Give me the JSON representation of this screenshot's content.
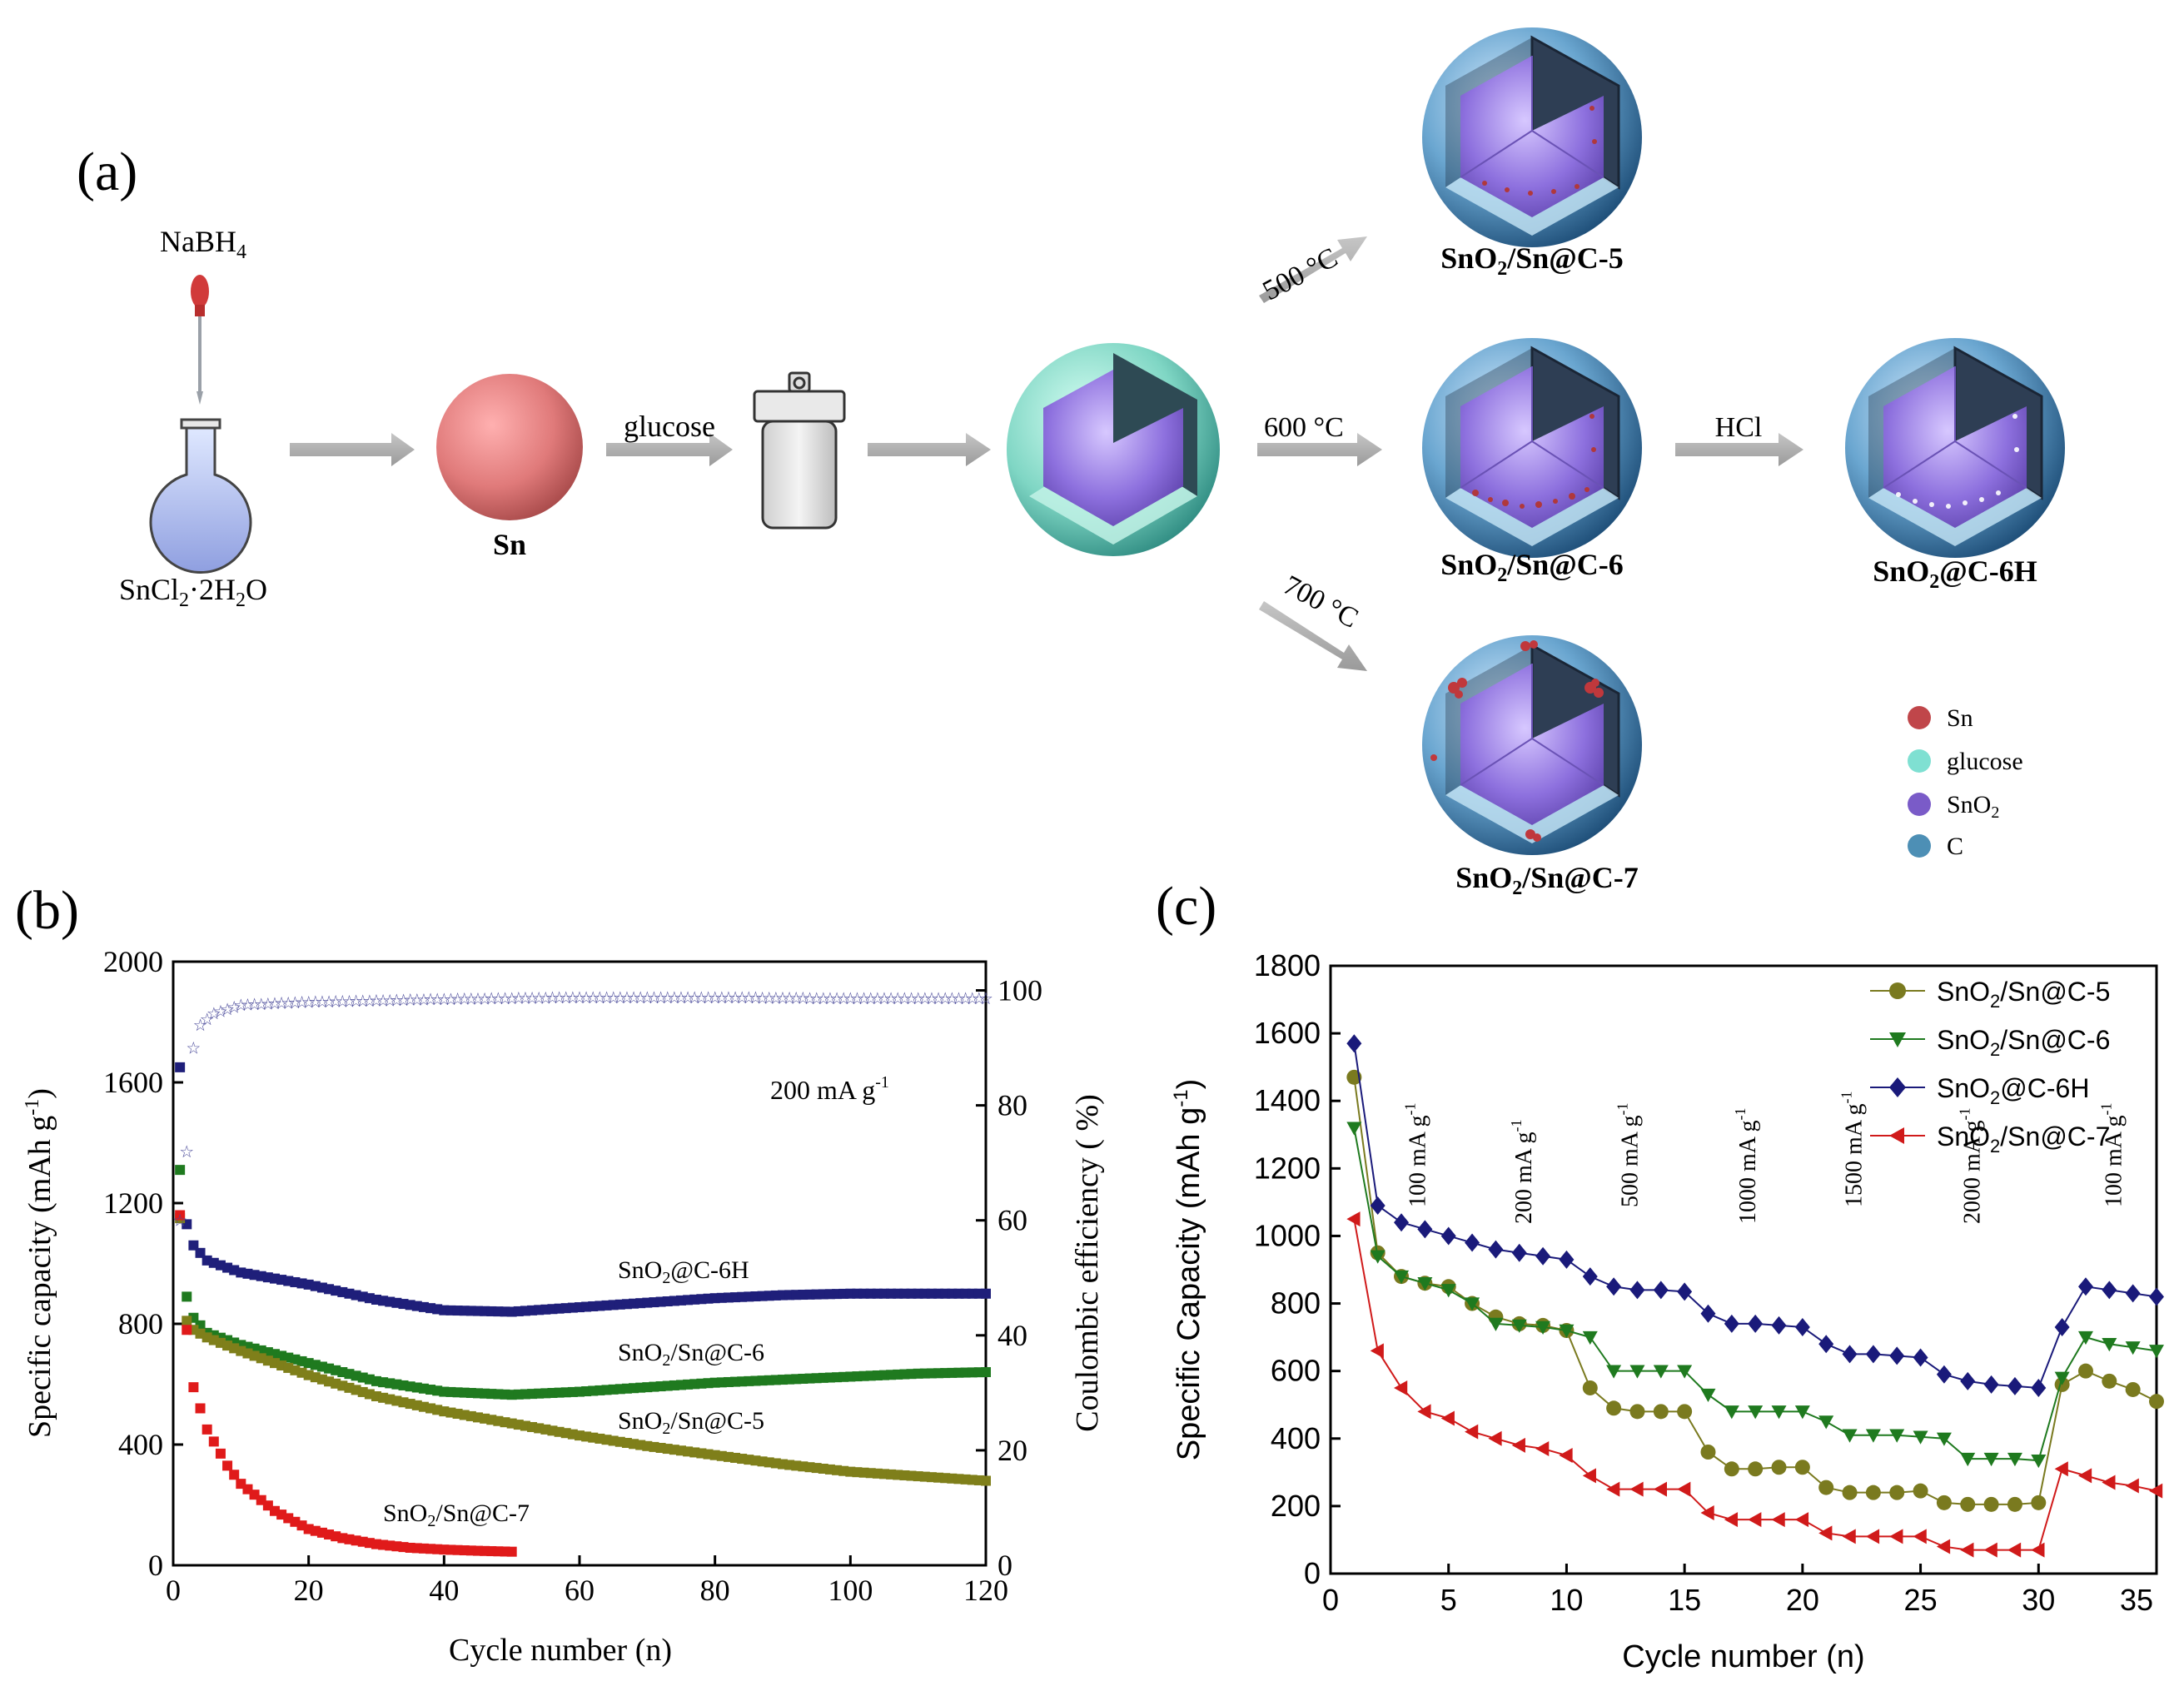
{
  "panel_a": {
    "label": "(a)",
    "reagent": "NaBH",
    "reagent_sub": "4",
    "precursor": {
      "part1": "SnCl",
      "sub1": "2",
      "part2": "·2H",
      "sub2": "2",
      "part3": "O"
    },
    "sn_label": "Sn",
    "glucose_step": "glucose",
    "temp_500": "500 °C",
    "temp_600": "600 °C",
    "temp_700": "700 °C",
    "hcl": "HCl",
    "p5": {
      "a": "SnO",
      "sub": "2",
      "b": "/Sn@C-5"
    },
    "p6": {
      "a": "SnO",
      "sub": "2",
      "b": "/Sn@C-6"
    },
    "p7": {
      "a": "SnO",
      "sub": "2",
      "b": "/Sn@C-7"
    },
    "p6h": {
      "a": "SnO",
      "sub": "2",
      "b": "@C-6H"
    },
    "legend": [
      {
        "text": "Sn",
        "sub": "",
        "color": "#c0464a"
      },
      {
        "text": "glucose",
        "sub": "",
        "color": "#7fe0d2"
      },
      {
        "text": "SnO",
        "sub": "2",
        "color": "#7a5bc8"
      },
      {
        "text": "C",
        "sub": "",
        "color": "#4d8fb5"
      }
    ]
  },
  "panel_b": {
    "label": "(b)",
    "annotation": {
      "text": "200 mA g",
      "sup": "-1"
    },
    "series_labels": [
      {
        "a": "SnO",
        "sub": "2",
        "b": "@C-6H"
      },
      {
        "a": "SnO",
        "sub": "2",
        "b": "/Sn@C-6"
      },
      {
        "a": "SnO",
        "sub": "2",
        "b": "/Sn@C-5"
      },
      {
        "a": "SnO",
        "sub": "2",
        "b": "/Sn@C-7"
      }
    ]
  },
  "panel_c": {
    "label": "(c)",
    "legend": [
      {
        "a": "SnO",
        "sub": "2",
        "b": "/Sn@C-5"
      },
      {
        "a": "SnO",
        "sub": "2",
        "b": "/Sn@C-6"
      },
      {
        "a": "SnO",
        "sub": "2",
        "b": "@C-6H"
      },
      {
        "a": "SnO",
        "sub": "2",
        "b": "/Sn@C-7"
      }
    ],
    "rate_labels": [
      {
        "text": "100 mA g",
        "sup": "-1"
      },
      {
        "text": "200 mA g",
        "sup": "-1"
      },
      {
        "text": "500 mA g",
        "sup": "-1"
      },
      {
        "text": "1000 mA g",
        "sup": "-1"
      },
      {
        "text": "1500 mA g",
        "sup": "-1"
      },
      {
        "text": "2000 mA g",
        "sup": "-1"
      },
      {
        "text": "100 mA g",
        "sup": "-1"
      }
    ]
  },
  "chart_data": [
    {
      "type": "scatter",
      "title": "",
      "xlabel": "Cycle number (n)",
      "ylabel": {
        "text": "Specific capacity (mAh g",
        "sup": "-1",
        "end": ")"
      },
      "y2label": "Coulombic efficiency ( %)",
      "xlim": [
        0,
        120
      ],
      "ylim": [
        0,
        2000
      ],
      "y2lim": [
        0,
        105
      ],
      "xticks": [
        0,
        20,
        40,
        60,
        80,
        100,
        120
      ],
      "yticks": [
        0,
        400,
        800,
        1200,
        1600,
        2000
      ],
      "y2ticks": [
        0,
        20,
        40,
        60,
        80,
        100
      ],
      "series": [
        {
          "name": "SnO2@C-6H",
          "color": "#1f1f7a",
          "marker": "square",
          "points": [
            [
              1,
              1650
            ],
            [
              2,
              1130
            ],
            [
              3,
              1060
            ],
            [
              5,
              1010
            ],
            [
              10,
              970
            ],
            [
              20,
              930
            ],
            [
              30,
              880
            ],
            [
              40,
              845
            ],
            [
              50,
              840
            ],
            [
              60,
              855
            ],
            [
              70,
              870
            ],
            [
              80,
              885
            ],
            [
              90,
              895
            ],
            [
              100,
              900
            ],
            [
              110,
              900
            ],
            [
              120,
              900
            ]
          ]
        },
        {
          "name": "SnO2/Sn@C-6",
          "color": "#1f7a1f",
          "marker": "square",
          "points": [
            [
              1,
              1310
            ],
            [
              2,
              890
            ],
            [
              3,
              820
            ],
            [
              5,
              770
            ],
            [
              10,
              730
            ],
            [
              20,
              670
            ],
            [
              30,
              610
            ],
            [
              40,
              575
            ],
            [
              50,
              565
            ],
            [
              60,
              575
            ],
            [
              70,
              590
            ],
            [
              80,
              605
            ],
            [
              90,
              615
            ],
            [
              100,
              625
            ],
            [
              110,
              635
            ],
            [
              120,
              640
            ]
          ]
        },
        {
          "name": "SnO2/Sn@C-5",
          "color": "#7f7f1a",
          "marker": "square",
          "points": [
            [
              1,
              1150
            ],
            [
              2,
              810
            ],
            [
              3,
              780
            ],
            [
              5,
              755
            ],
            [
              10,
              710
            ],
            [
              20,
              630
            ],
            [
              30,
              560
            ],
            [
              40,
              510
            ],
            [
              50,
              470
            ],
            [
              60,
              430
            ],
            [
              70,
              395
            ],
            [
              80,
              365
            ],
            [
              90,
              335
            ],
            [
              100,
              310
            ],
            [
              110,
              295
            ],
            [
              120,
              280
            ]
          ]
        },
        {
          "name": "SnO2/Sn@C-7",
          "color": "#e01a1a",
          "marker": "square",
          "points": [
            [
              1,
              1160
            ],
            [
              2,
              780
            ],
            [
              3,
              590
            ],
            [
              5,
              450
            ],
            [
              8,
              330
            ],
            [
              10,
              270
            ],
            [
              15,
              180
            ],
            [
              20,
              120
            ],
            [
              25,
              90
            ],
            [
              30,
              70
            ],
            [
              35,
              58
            ],
            [
              40,
              52
            ],
            [
              45,
              48
            ],
            [
              50,
              45
            ]
          ]
        },
        {
          "name": "Coulombic efficiency",
          "axis": "y2",
          "color": "#4a4a9a",
          "marker": "star",
          "points": [
            [
              1,
              60
            ],
            [
              2,
              72
            ],
            [
              3,
              90
            ],
            [
              4,
              94
            ],
            [
              6,
              96
            ],
            [
              10,
              97.5
            ],
            [
              20,
              98
            ],
            [
              40,
              98.5
            ],
            [
              60,
              98.8
            ],
            [
              80,
              98.8
            ],
            [
              100,
              98.6
            ],
            [
              120,
              98.6
            ]
          ]
        }
      ]
    },
    {
      "type": "line",
      "title": "",
      "xlabel": "Cycle number (n)",
      "ylabel": {
        "text": "Specific Capacity (mAh g",
        "sup": "-1",
        "end": ")"
      },
      "xlim": [
        0,
        35
      ],
      "ylim": [
        0,
        1800
      ],
      "xticks": [
        0,
        5,
        10,
        15,
        20,
        25,
        30,
        35
      ],
      "xtick_labels": [
        "0",
        "5",
        "10",
        "15",
        "20",
        "25",
        "30",
        "35"
      ],
      "yticks": [
        0,
        200,
        400,
        600,
        800,
        1000,
        1200,
        1400,
        1600,
        1800
      ],
      "legend_position": "top-right",
      "rate_label_positions": [
        4,
        8.5,
        13,
        18,
        22.5,
        27.5,
        33.5
      ],
      "series": [
        {
          "name": "SnO2/Sn@C-5",
          "color": "#7a7a1f",
          "marker": "circle",
          "x": [
            1,
            2,
            3,
            4,
            5,
            6,
            7,
            8,
            9,
            10,
            11,
            12,
            13,
            14,
            15,
            16,
            17,
            18,
            19,
            20,
            21,
            22,
            23,
            24,
            25,
            26,
            27,
            28,
            29,
            30,
            31,
            32,
            33,
            34,
            35
          ],
          "values": [
            1470,
            950,
            880,
            860,
            850,
            800,
            760,
            740,
            735,
            720,
            550,
            490,
            480,
            480,
            480,
            360,
            310,
            310,
            315,
            315,
            255,
            240,
            240,
            240,
            245,
            210,
            205,
            205,
            205,
            210,
            560,
            600,
            570,
            545,
            510
          ]
        },
        {
          "name": "SnO2/Sn@C-6",
          "color": "#1f7a1f",
          "marker": "triangle-down",
          "x": [
            1,
            2,
            3,
            4,
            5,
            6,
            7,
            8,
            9,
            10,
            11,
            12,
            13,
            14,
            15,
            16,
            17,
            18,
            19,
            20,
            21,
            22,
            23,
            24,
            25,
            26,
            27,
            28,
            29,
            30,
            31,
            32,
            33,
            34,
            35
          ],
          "values": [
            1320,
            940,
            880,
            860,
            840,
            800,
            740,
            735,
            730,
            720,
            700,
            600,
            600,
            600,
            600,
            530,
            480,
            480,
            480,
            480,
            450,
            410,
            410,
            410,
            405,
            400,
            340,
            340,
            340,
            335,
            580,
            700,
            680,
            670,
            660
          ]
        },
        {
          "name": "SnO2@C-6H",
          "color": "#1a1a7a",
          "marker": "diamond",
          "x": [
            1,
            2,
            3,
            4,
            5,
            6,
            7,
            8,
            9,
            10,
            11,
            12,
            13,
            14,
            15,
            16,
            17,
            18,
            19,
            20,
            21,
            22,
            23,
            24,
            25,
            26,
            27,
            28,
            29,
            30,
            31,
            32,
            33,
            34,
            35
          ],
          "values": [
            1570,
            1090,
            1040,
            1020,
            1000,
            980,
            960,
            950,
            940,
            930,
            880,
            850,
            840,
            840,
            835,
            770,
            740,
            740,
            735,
            730,
            680,
            650,
            650,
            645,
            640,
            590,
            570,
            560,
            555,
            550,
            730,
            850,
            840,
            830,
            820
          ]
        },
        {
          "name": "SnO2/Sn@C-7",
          "color": "#d01a1a",
          "marker": "triangle-left",
          "x": [
            1,
            2,
            3,
            4,
            5,
            6,
            7,
            8,
            9,
            10,
            11,
            12,
            13,
            14,
            15,
            16,
            17,
            18,
            19,
            20,
            21,
            22,
            23,
            24,
            25,
            26,
            27,
            28,
            29,
            30,
            31,
            32,
            33,
            34,
            35
          ],
          "values": [
            1050,
            660,
            550,
            480,
            460,
            420,
            400,
            380,
            370,
            350,
            290,
            250,
            250,
            250,
            250,
            180,
            160,
            160,
            160,
            160,
            120,
            110,
            110,
            110,
            110,
            80,
            70,
            70,
            70,
            70,
            310,
            290,
            270,
            260,
            245
          ]
        }
      ]
    }
  ]
}
